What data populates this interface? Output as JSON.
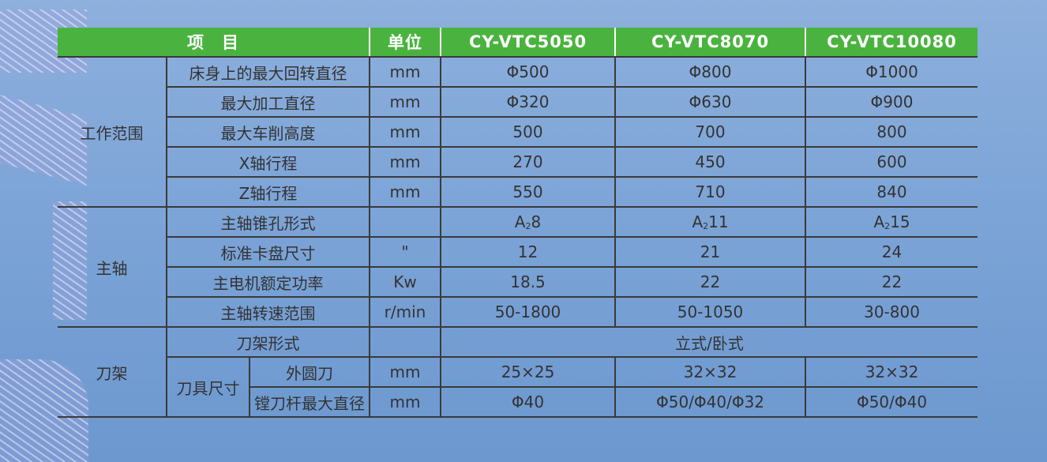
{
  "header": {
    "item": "项　目",
    "unit": "单位",
    "models": [
      "CY-VTC5050",
      "CY-VTC8070",
      "CY-VTC10080"
    ]
  },
  "groups": {
    "work_range": "工作范围",
    "spindle": "主轴",
    "tool_post": "刀架",
    "tool_size": "刀具尺寸"
  },
  "rows": [
    {
      "name": "床身上的最大回转直径",
      "unit": "mm",
      "v": [
        "Φ500",
        "Φ800",
        "Φ1000"
      ]
    },
    {
      "name": "最大加工直径",
      "unit": "mm",
      "v": [
        "Φ320",
        "Φ630",
        "Φ900"
      ]
    },
    {
      "name": "最大车削高度",
      "unit": "mm",
      "v": [
        "500",
        "700",
        "800"
      ]
    },
    {
      "name": "X轴行程",
      "unit": "mm",
      "v": [
        "270",
        "450",
        "600"
      ]
    },
    {
      "name": "Z轴行程",
      "unit": "mm",
      "v": [
        "550",
        "710",
        "840"
      ]
    },
    {
      "name": "主轴锥孔形式",
      "unit": "",
      "v": [
        {
          "a": "A",
          "s": "2",
          "b": "8"
        },
        {
          "a": "A",
          "s": "2",
          "b": "11"
        },
        {
          "a": "A",
          "s": "2",
          "b": "15"
        }
      ]
    },
    {
      "name": "标准卡盘尺寸",
      "unit": "\"",
      "v": [
        "12",
        "21",
        "24"
      ]
    },
    {
      "name": "主电机额定功率",
      "unit": "Kw",
      "v": [
        "18.5",
        "22",
        "22"
      ]
    },
    {
      "name": "主轴转速范围",
      "unit": "r/min",
      "v": [
        "50-1800",
        "50-1050",
        "30-800"
      ]
    },
    {
      "name": "刀架形式",
      "unit": "",
      "v": [
        "立式/卧式"
      ]
    },
    {
      "name": "外圆刀",
      "unit": "mm",
      "v": [
        "25×25",
        "32×32",
        "32×32"
      ]
    },
    {
      "name": "镗刀杆最大直径",
      "unit": "mm",
      "v": [
        "Φ40",
        "Φ50/Φ40/Φ32",
        "Φ50/Φ40"
      ]
    }
  ],
  "colors": {
    "header_bg": "#4ab33f",
    "background": "#7ba3d6"
  }
}
